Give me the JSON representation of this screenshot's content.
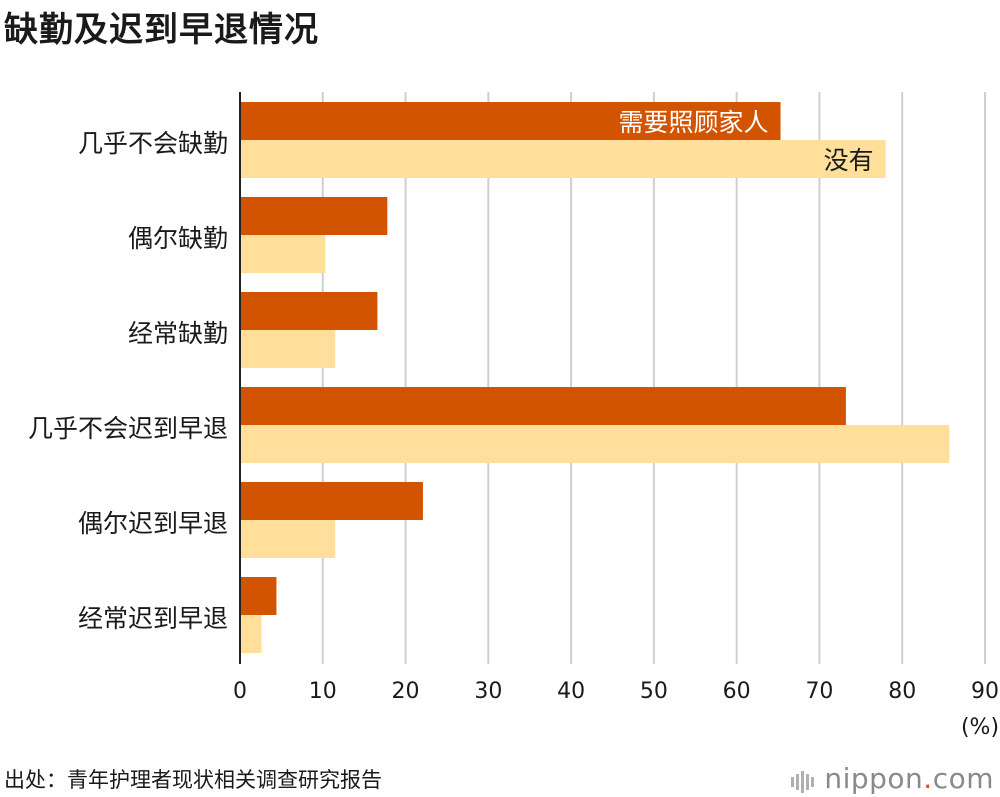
{
  "title": "缺勤及迟到早退情况",
  "source": "出处：青年护理者现状相关调查研究报告",
  "brand": {
    "name": "nippon",
    "sep": ".",
    "tld": "com"
  },
  "colors": {
    "care": "#d35400",
    "none": "#ffdf99",
    "grid": "#cfcfcf",
    "axis": "#222222"
  },
  "chart_data": {
    "type": "bar",
    "orientation": "horizontal",
    "categories": [
      "几乎不会缺勤",
      "偶尔缺勤",
      "经常缺勤",
      "几乎不会迟到早退",
      "偶尔迟到早退",
      "经常迟到早退"
    ],
    "series": [
      {
        "name": "需要照顾家人",
        "values": [
          65.3,
          17.8,
          16.6,
          73.2,
          22.1,
          4.4
        ]
      },
      {
        "name": "没有",
        "values": [
          78,
          10.3,
          11.5,
          85.7,
          11.5,
          2.6
        ]
      }
    ],
    "xlim": [
      0,
      90
    ],
    "xticks": [
      "0",
      "10",
      "20",
      "30",
      "40",
      "50",
      "60",
      "70",
      "80",
      "90"
    ],
    "xunit": "(%)",
    "grid": true
  }
}
